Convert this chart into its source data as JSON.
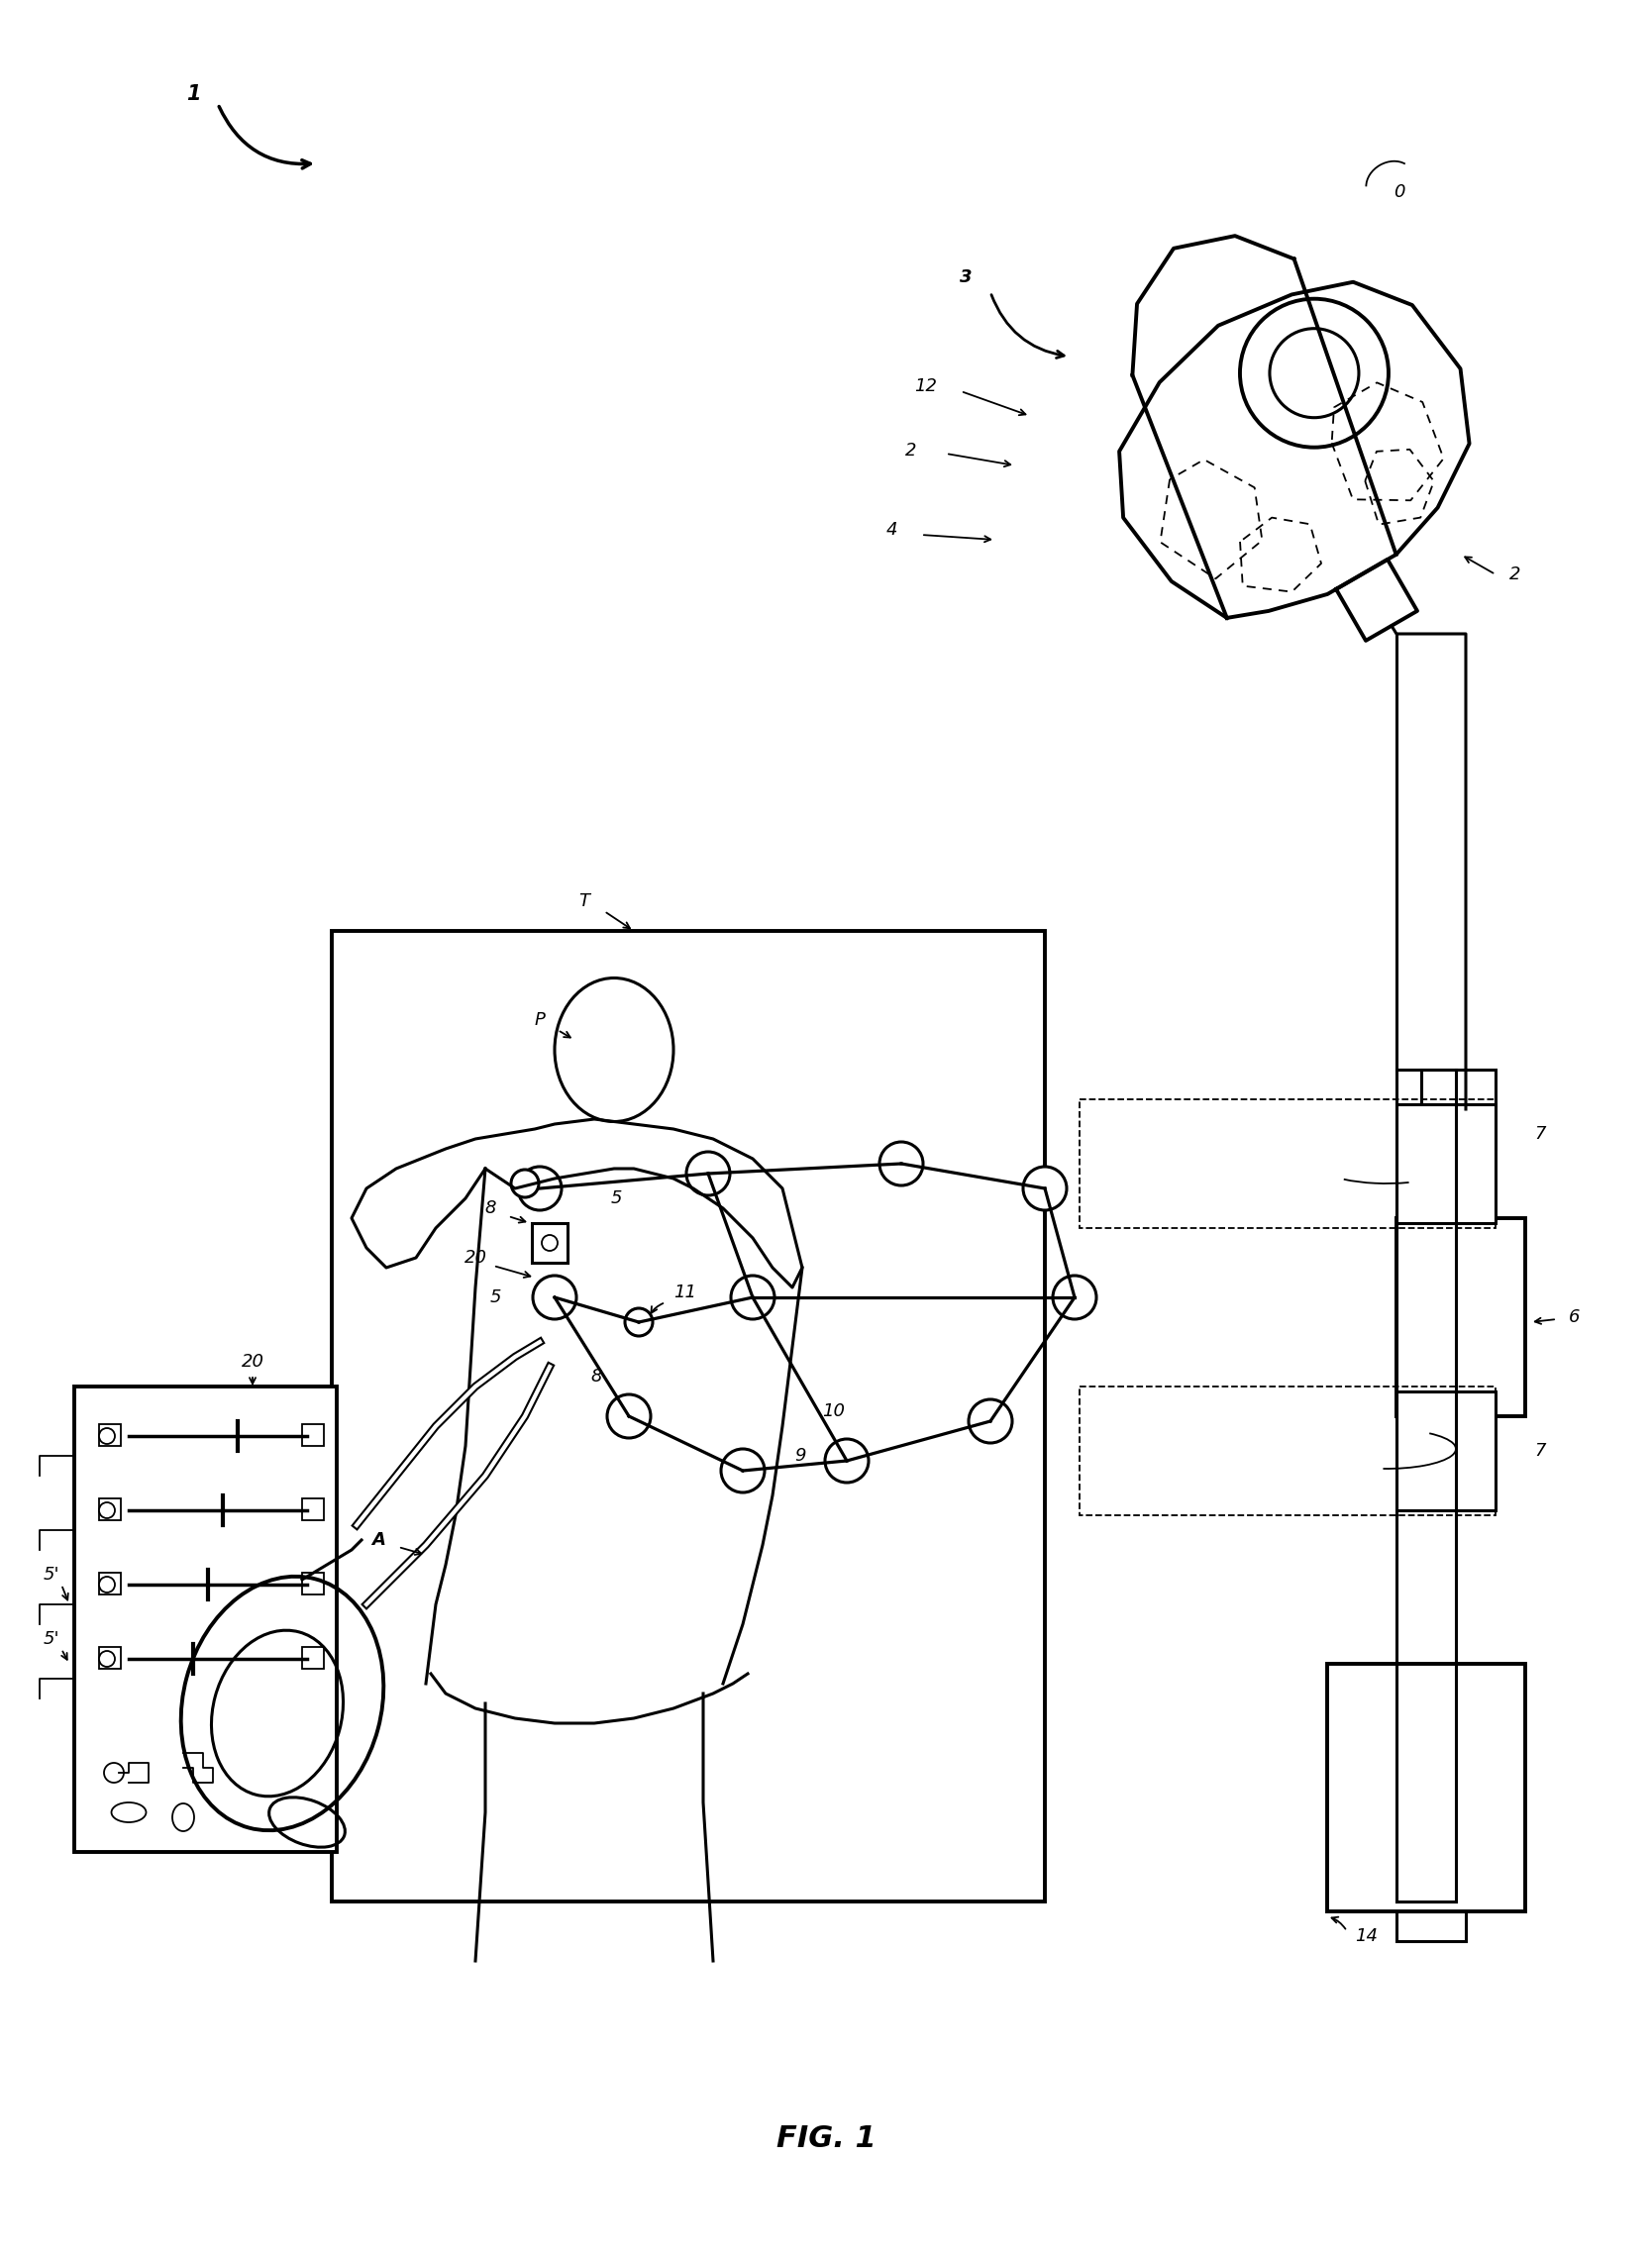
{
  "bg_color": "#ffffff",
  "fig_label": "FIG. 1",
  "lw_main": 2.2,
  "lw_thin": 1.3,
  "lw_thick": 2.8,
  "fs_label": 13,
  "fs_large": 15,
  "labels": {
    "1": "1",
    "0": "0",
    "2": "2",
    "3": "3",
    "4": "4",
    "5": "5",
    "5p": "5'",
    "6": "6",
    "7": "7",
    "8": "8",
    "9": "9",
    "10": "10",
    "11": "11",
    "12": "12",
    "14": "14",
    "20": "20",
    "A": "A",
    "T": "T",
    "P": "P"
  }
}
